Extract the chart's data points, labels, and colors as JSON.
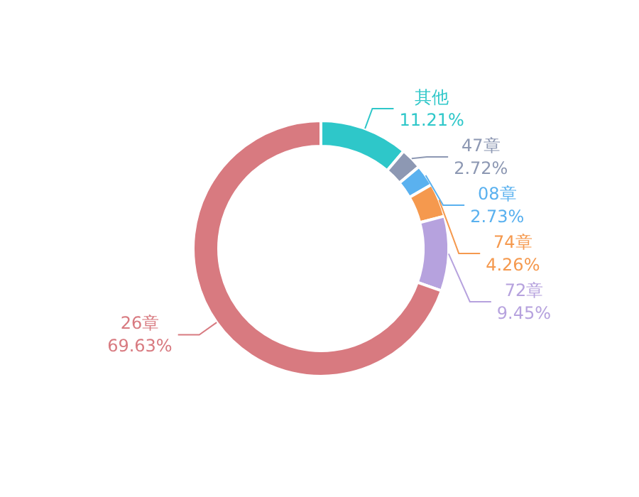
{
  "chart_data": {
    "type": "donut",
    "categories": [
      "其他",
      "47章",
      "08章",
      "74章",
      "72章",
      "26章"
    ],
    "values": [
      11.21,
      2.72,
      2.73,
      4.26,
      9.45,
      69.63
    ],
    "colors": [
      "#2ec7c9",
      "#8d98b3",
      "#5ab1ef",
      "#f5994e",
      "#b6a2de",
      "#d87a80"
    ],
    "value_labels": [
      "11.21%",
      "2.72%",
      "2.73%",
      "4.26%",
      "9.45%",
      "69.63%"
    ]
  }
}
